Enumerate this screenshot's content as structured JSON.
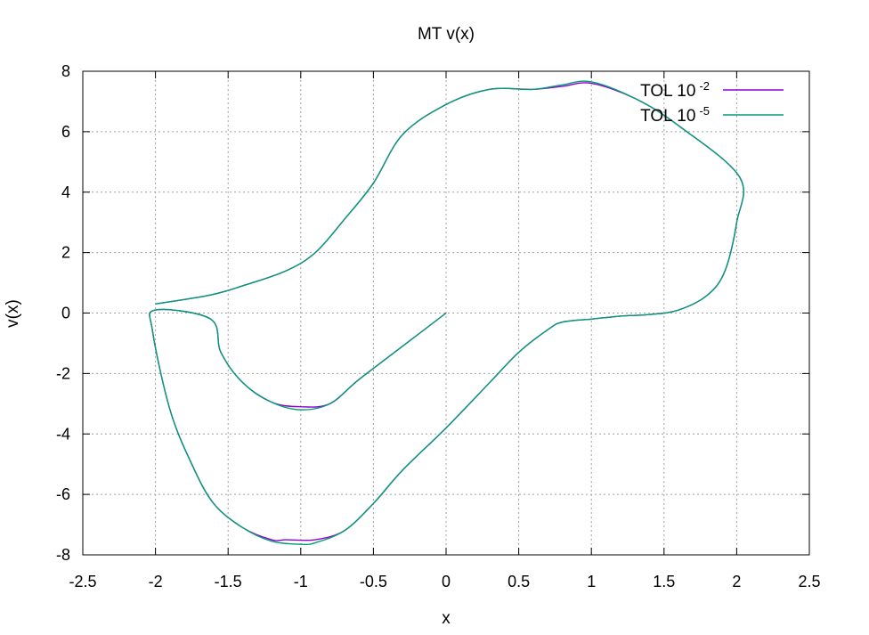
{
  "chart_data": {
    "type": "line",
    "title": "MT v(x)",
    "xlabel": "x",
    "ylabel": "v(x)",
    "xlim": [
      -2.5,
      2.5
    ],
    "ylim": [
      -8,
      8
    ],
    "x_ticks": [
      -2.5,
      -2,
      -1.5,
      -1,
      -0.5,
      0,
      0.5,
      1,
      1.5,
      2,
      2.5
    ],
    "y_ticks": [
      -8,
      -6,
      -4,
      -2,
      0,
      2,
      4,
      6,
      8
    ],
    "x_tick_labels": [
      "-2.5",
      "-2",
      "-1.5",
      "-1",
      "-0.5",
      "0",
      "0.5",
      "1",
      "1.5",
      "2",
      "2.5"
    ],
    "y_tick_labels": [
      "-8",
      "-6",
      "-4",
      "-2",
      "0",
      "2",
      "4",
      "6",
      "8"
    ],
    "grid": true,
    "legend_position": "top-right",
    "series": [
      {
        "name_base": "TOL 10",
        "name_exp": "-2",
        "color": "#9400d3",
        "x": [
          0,
          -0.3,
          -0.6,
          -0.8,
          -1.0,
          -1.2,
          -1.4,
          -1.55,
          -1.62,
          -2.0,
          -2.02,
          -1.9,
          -1.75,
          -1.6,
          -1.4,
          -1.2,
          -1.1,
          -0.9,
          -0.7,
          -0.5,
          -0.3,
          0,
          0.3,
          0.5,
          0.7,
          0.8,
          1.0,
          1.2,
          1.4,
          1.6,
          1.8,
          1.92,
          2.0,
          2.02,
          1.6,
          1.3,
          1.0,
          0.8,
          0.6,
          0.3,
          0,
          -0.3,
          -0.5,
          -0.7,
          -0.9,
          -1.1,
          -1.4,
          -1.62,
          -2.0
        ],
        "y": [
          0,
          -1.1,
          -2.2,
          -3.0,
          -3.1,
          -2.95,
          -2.3,
          -1.3,
          -0.2,
          0.1,
          -0.6,
          -3.2,
          -5.0,
          -6.3,
          -7.1,
          -7.5,
          -7.5,
          -7.5,
          -7.2,
          -6.3,
          -5.2,
          -3.8,
          -2.3,
          -1.3,
          -0.55,
          -0.3,
          -0.2,
          -0.1,
          -0.05,
          0.1,
          0.6,
          1.4,
          3.0,
          4.5,
          6.2,
          7.1,
          7.6,
          7.5,
          7.4,
          7.4,
          6.9,
          5.9,
          4.3,
          3.1,
          2.0,
          1.4,
          0.9,
          0.6,
          0.3
        ],
        "note_points": "order follows the drawn path"
      },
      {
        "name_base": "TOL 10",
        "name_exp": "-5",
        "color": "#009e73",
        "x": [
          0,
          -0.3,
          -0.6,
          -0.8,
          -1.0,
          -1.2,
          -1.4,
          -1.55,
          -1.62,
          -2.0,
          -2.02,
          -1.9,
          -1.75,
          -1.6,
          -1.4,
          -1.2,
          -1.0,
          -0.9,
          -0.7,
          -0.5,
          -0.3,
          0,
          0.3,
          0.5,
          0.7,
          0.8,
          1.0,
          1.2,
          1.4,
          1.6,
          1.8,
          1.92,
          2.0,
          2.02,
          1.6,
          1.3,
          1.0,
          0.8,
          0.6,
          0.3,
          0,
          -0.3,
          -0.5,
          -0.7,
          -0.9,
          -1.1,
          -1.4,
          -1.62,
          -2.0
        ],
        "y": [
          0,
          -1.1,
          -2.2,
          -3.0,
          -3.2,
          -2.95,
          -2.3,
          -1.3,
          -0.2,
          0.1,
          -0.6,
          -3.2,
          -5.0,
          -6.3,
          -7.1,
          -7.55,
          -7.65,
          -7.6,
          -7.2,
          -6.3,
          -5.2,
          -3.8,
          -2.3,
          -1.3,
          -0.55,
          -0.3,
          -0.2,
          -0.1,
          -0.05,
          0.1,
          0.6,
          1.4,
          3.0,
          4.5,
          6.2,
          7.1,
          7.65,
          7.55,
          7.4,
          7.4,
          6.9,
          5.9,
          4.3,
          3.1,
          2.0,
          1.4,
          0.9,
          0.6,
          0.3
        ]
      }
    ]
  }
}
